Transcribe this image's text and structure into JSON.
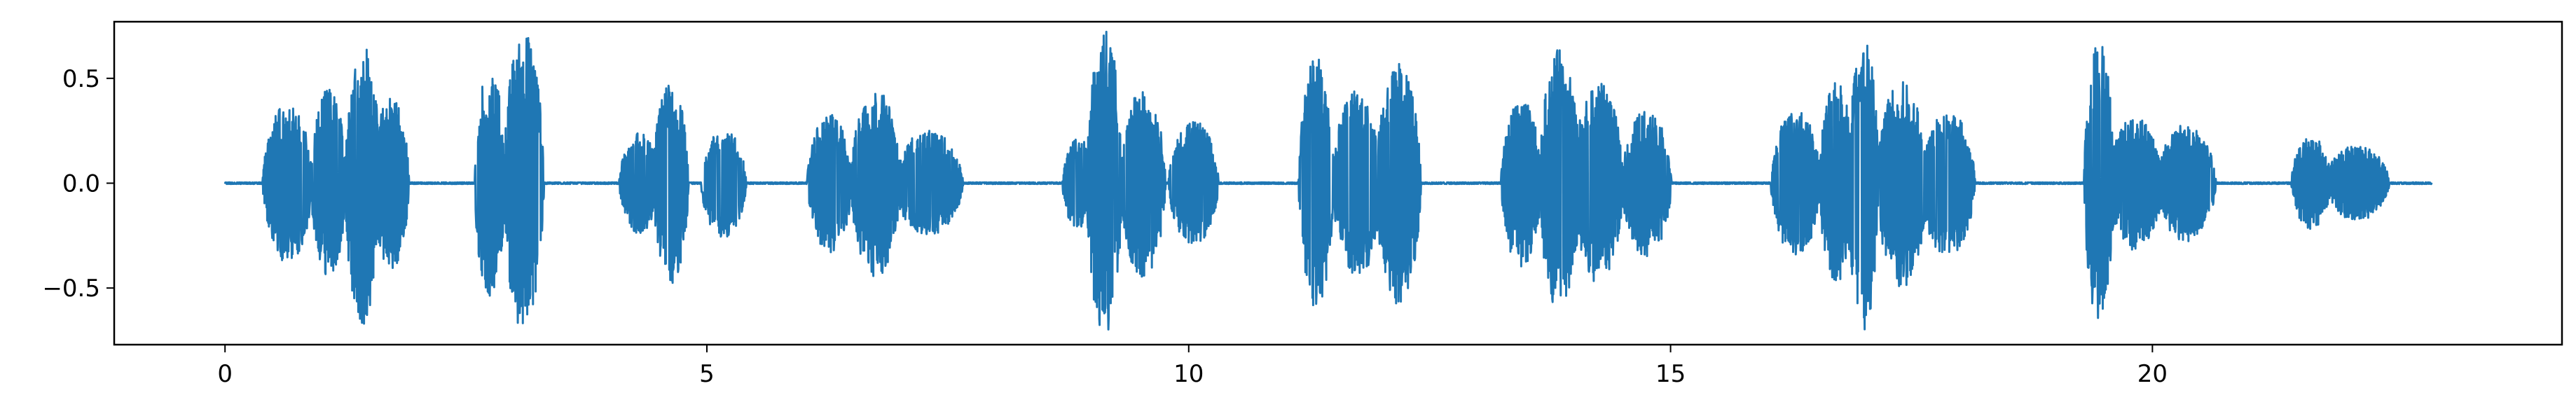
{
  "chart_data": {
    "type": "line",
    "title": "",
    "xlabel": "",
    "ylabel": "",
    "xlim": [
      -1.15,
      24.25
    ],
    "ylim": [
      -0.77,
      0.77
    ],
    "xticks": [
      0,
      5,
      10,
      15,
      20
    ],
    "xtick_labels": [
      "0",
      "5",
      "10",
      "15",
      "20"
    ],
    "yticks": [
      0.5,
      0.0,
      -0.5
    ],
    "ytick_labels": [
      "0.5",
      "0.0",
      "−0.5"
    ],
    "grid": false,
    "legend": "none",
    "series": [
      {
        "color": "#1f77b4",
        "duration": 22.9,
        "bursts": [
          [
            0.45,
            0.85,
            0.38
          ],
          [
            0.95,
            1.2,
            0.45
          ],
          [
            1.3,
            1.55,
            0.68
          ],
          [
            1.6,
            1.85,
            0.42
          ],
          [
            2.65,
            2.85,
            0.55
          ],
          [
            2.95,
            3.25,
            0.72
          ],
          [
            4.15,
            4.45,
            0.24
          ],
          [
            4.5,
            4.75,
            0.48
          ],
          [
            5.0,
            5.35,
            0.26
          ],
          [
            6.1,
            6.45,
            0.33
          ],
          [
            6.55,
            6.95,
            0.45
          ],
          [
            7.0,
            7.6,
            0.25
          ],
          [
            8.75,
            8.95,
            0.22
          ],
          [
            9.0,
            9.25,
            0.74
          ],
          [
            9.35,
            9.7,
            0.45
          ],
          [
            9.85,
            10.25,
            0.3
          ],
          [
            11.2,
            11.45,
            0.6
          ],
          [
            11.55,
            11.95,
            0.45
          ],
          [
            12.0,
            12.35,
            0.58
          ],
          [
            13.3,
            13.6,
            0.4
          ],
          [
            13.7,
            14.0,
            0.64
          ],
          [
            14.05,
            14.45,
            0.48
          ],
          [
            14.55,
            14.95,
            0.35
          ],
          [
            16.1,
            16.5,
            0.35
          ],
          [
            16.6,
            16.85,
            0.48
          ],
          [
            16.9,
            17.1,
            0.7
          ],
          [
            17.2,
            17.6,
            0.5
          ],
          [
            17.65,
            18.1,
            0.35
          ],
          [
            19.35,
            19.55,
            0.68
          ],
          [
            19.6,
            20.05,
            0.32
          ],
          [
            20.1,
            20.6,
            0.28
          ],
          [
            21.5,
            21.8,
            0.22
          ],
          [
            21.85,
            22.4,
            0.18
          ]
        ]
      }
    ]
  }
}
